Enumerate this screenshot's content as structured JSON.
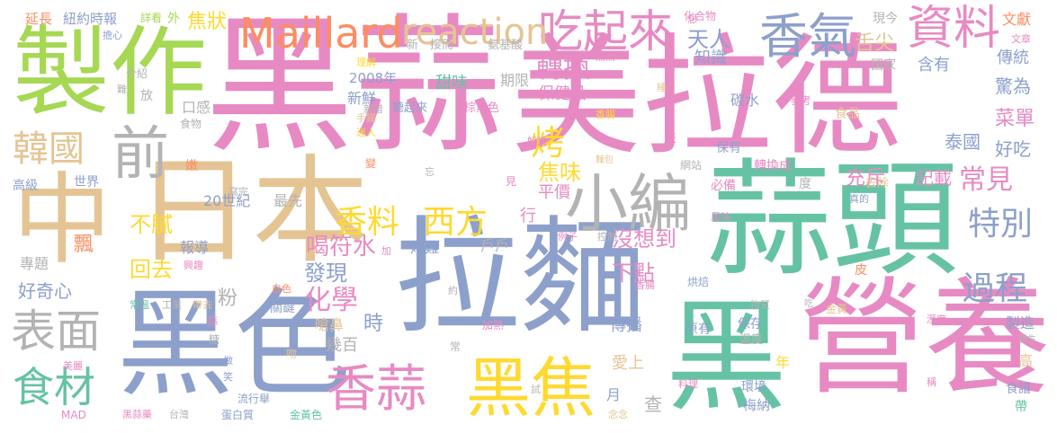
{
  "palette": {
    "green": "#76c17d",
    "mint": "#66c2a5",
    "lime": "#a6d854",
    "yellow": "#ffd92f",
    "tan": "#e5c494",
    "orange": "#fc8d62",
    "blue": "#8da0cb",
    "pink": "#e78ac3",
    "gray": "#b3b3b3"
  },
  "words": [
    {
      "text": "黑蒜",
      "color": "#e78ac3"
    },
    {
      "text": "美拉德",
      "color": "#e78ac3"
    },
    {
      "text": "蒜頭",
      "color": "#66c2a5"
    },
    {
      "text": "拉麵",
      "color": "#8da0cb"
    },
    {
      "text": "營養",
      "color": "#e78ac3"
    },
    {
      "text": "製作",
      "color": "#a6d854"
    },
    {
      "text": "黑色",
      "color": "#8da0cb"
    },
    {
      "text": "日本",
      "color": "#e5c494"
    },
    {
      "text": "黑",
      "color": "#66c2a5"
    },
    {
      "text": "中",
      "color": "#e5c494"
    },
    {
      "text": "小編",
      "color": "#b3b3b3"
    },
    {
      "text": "前",
      "color": "#b3b3b3"
    },
    {
      "text": "黑焦",
      "color": "#ffd92f"
    },
    {
      "text": "香蒜",
      "color": "#e78ac3"
    },
    {
      "text": "香氣",
      "color": "#8da0cb"
    },
    {
      "text": "資料",
      "color": "#e78ac3"
    },
    {
      "text": "吃起來",
      "color": "#e78ac3"
    },
    {
      "text": "Maillard",
      "color": "#fc8d62"
    },
    {
      "text": "reaction",
      "color": "#e5c494"
    },
    {
      "text": "表面",
      "color": "#b3b3b3"
    },
    {
      "text": "食材",
      "color": "#66c2a5"
    },
    {
      "text": "韓國",
      "color": "#e5c494"
    },
    {
      "text": "香料",
      "color": "#ffd92f"
    },
    {
      "text": "西方",
      "color": "#ffd92f"
    },
    {
      "text": "特別",
      "color": "#8da0cb"
    },
    {
      "text": "過程",
      "color": "#8da0cb"
    },
    {
      "text": "烤",
      "color": "#ffd92f"
    },
    {
      "text": "轉換",
      "color": "#e78ac3"
    },
    {
      "text": "化學",
      "color": "#e78ac3"
    },
    {
      "text": "天人",
      "color": "#8da0cb"
    },
    {
      "text": "喝符水",
      "color": "#e78ac3"
    },
    {
      "text": "發現",
      "color": "#8da0cb"
    },
    {
      "text": "常見",
      "color": "#e78ac3"
    },
    {
      "text": "沒想到",
      "color": "#e78ac3"
    },
    {
      "text": "下點",
      "color": "#e78ac3"
    },
    {
      "text": "焦味",
      "color": "#ffd92f"
    },
    {
      "text": "不膩",
      "color": "#ffd92f"
    },
    {
      "text": "回去",
      "color": "#ffd92f"
    },
    {
      "text": "焦狀",
      "color": "#ffd92f"
    },
    {
      "text": "舌尖",
      "color": "#e5c494"
    },
    {
      "text": "充斥",
      "color": "#e78ac3"
    },
    {
      "text": "菜單",
      "color": "#e78ac3"
    },
    {
      "text": "驚為",
      "color": "#8da0cb"
    },
    {
      "text": "好吃",
      "color": "#8da0cb"
    },
    {
      "text": "傳統",
      "color": "#8da0cb"
    },
    {
      "text": "知識",
      "color": "#8da0cb"
    },
    {
      "text": "含有",
      "color": "#8da0cb"
    },
    {
      "text": "泰國",
      "color": "#8da0cb"
    },
    {
      "text": "記載",
      "color": "#e78ac3"
    },
    {
      "text": "保健品",
      "color": "#e78ac3"
    },
    {
      "text": "甜味",
      "color": "#66c2a5"
    },
    {
      "text": "期限",
      "color": "#b3b3b3"
    },
    {
      "text": "新鮮",
      "color": "#8da0cb"
    },
    {
      "text": "2008年",
      "color": "#8da0cb"
    },
    {
      "text": "口感",
      "color": "#b3b3b3"
    },
    {
      "text": "平價",
      "color": "#e78ac3"
    },
    {
      "text": "行",
      "color": "#e78ac3"
    },
    {
      "text": "20世紀",
      "color": "#8da0cb"
    },
    {
      "text": "最先",
      "color": "#b3b3b3"
    },
    {
      "text": "烤雞",
      "color": "#8da0cb"
    },
    {
      "text": "戶戶",
      "color": "#b3b3b3"
    },
    {
      "text": "粉",
      "color": "#b3b3b3"
    },
    {
      "text": "飄",
      "color": "#fc8d62"
    },
    {
      "text": "報導",
      "color": "#8da0cb"
    },
    {
      "text": "好奇心",
      "color": "#8da0cb"
    },
    {
      "text": "專題",
      "color": "#b3b3b3"
    },
    {
      "text": "時",
      "color": "#8da0cb"
    },
    {
      "text": "幾百",
      "color": "#b3b3b3"
    },
    {
      "text": "嗆鼻",
      "color": "#e5c494"
    },
    {
      "text": "傳播",
      "color": "#8da0cb"
    },
    {
      "text": "愛上",
      "color": "#e5c494"
    },
    {
      "text": "查",
      "color": "#b3b3b3"
    },
    {
      "text": "月",
      "color": "#8da0cb"
    },
    {
      "text": "年",
      "color": "#ffd92f"
    },
    {
      "text": "原有",
      "color": "#8da0cb"
    },
    {
      "text": "製造",
      "color": "#8da0cb"
    },
    {
      "text": "高",
      "color": "#e5c494"
    },
    {
      "text": "食譜",
      "color": "#8da0cb"
    },
    {
      "text": "帶",
      "color": "#66c2a5"
    },
    {
      "text": "梅納",
      "color": "#8da0cb"
    },
    {
      "text": "環境",
      "color": "#8da0cb"
    },
    {
      "text": "保存",
      "color": "#8da0cb"
    },
    {
      "text": "溫度",
      "color": "#b3b3b3"
    },
    {
      "text": "轉換成",
      "color": "#e78ac3"
    },
    {
      "text": "必備",
      "color": "#e78ac3"
    },
    {
      "text": "度",
      "color": "#b3b3b3"
    },
    {
      "text": "去除",
      "color": "#e5c494"
    },
    {
      "text": "保有",
      "color": "#8da0cb"
    },
    {
      "text": "網站",
      "color": "#b3b3b3"
    },
    {
      "text": "食品",
      "color": "#e5c494"
    },
    {
      "text": "參考",
      "color": "#e78ac3"
    },
    {
      "text": "碳水",
      "color": "#8da0cb"
    },
    {
      "text": "國家",
      "color": "#b3b3b3"
    },
    {
      "text": "現今",
      "color": "#b3b3b3"
    },
    {
      "text": "文獻",
      "color": "#fc8d62"
    },
    {
      "text": "文章",
      "color": "#e78ac3"
    },
    {
      "text": "化合物",
      "color": "#e78ac3"
    },
    {
      "text": "氨基酸",
      "color": "#b3b3b3"
    },
    {
      "text": "接而",
      "color": "#b3b3b3"
    },
    {
      "text": "新",
      "color": "#b3b3b3"
    },
    {
      "text": "外",
      "color": "#a6d854"
    },
    {
      "text": "詳看",
      "color": "#a6d854"
    },
    {
      "text": "紐約時報",
      "color": "#8da0cb"
    },
    {
      "text": "延長",
      "color": "#fc8d62"
    },
    {
      "text": "擔心",
      "color": "#8da0cb"
    },
    {
      "text": "介紹",
      "color": "#b3b3b3"
    },
    {
      "text": "放",
      "color": "#b3b3b3"
    },
    {
      "text": "難",
      "color": "#b3b3b3"
    },
    {
      "text": "食物",
      "color": "#b3b3b3"
    },
    {
      "text": "高級",
      "color": "#8da0cb"
    },
    {
      "text": "世界",
      "color": "#8da0cb"
    },
    {
      "text": "嫩",
      "color": "#fc8d62"
    },
    {
      "text": "理解",
      "color": "#ffd92f"
    },
    {
      "text": "手鐲",
      "color": "#e5c494"
    },
    {
      "text": "迷人",
      "color": "#ffd92f"
    },
    {
      "text": "新增",
      "color": "#b3b3b3"
    },
    {
      "text": "聽起來",
      "color": "#8da0cb"
    },
    {
      "text": "棕黑色",
      "color": "#e78ac3"
    },
    {
      "text": "解說",
      "color": "#e78ac3"
    },
    {
      "text": "香腸",
      "color": "#ffd92f"
    },
    {
      "text": "麵包",
      "color": "#e5c494"
    },
    {
      "text": "焦黑",
      "color": "#e78ac3"
    },
    {
      "text": "睡",
      "color": "#e5c494"
    },
    {
      "text": "想",
      "color": "#e78ac3"
    },
    {
      "text": "變",
      "color": "#fc8d62"
    },
    {
      "text": "忘",
      "color": "#b3b3b3"
    },
    {
      "text": "寫完",
      "color": "#b3b3b3"
    },
    {
      "text": "見",
      "color": "#e78ac3"
    },
    {
      "text": "天",
      "color": "#e78ac3"
    },
    {
      "text": "真的",
      "color": "#8da0cb"
    },
    {
      "text": "風味",
      "color": "#e78ac3"
    },
    {
      "text": "例子",
      "color": "#e78ac3"
    },
    {
      "text": "控制",
      "color": "#b3b3b3"
    },
    {
      "text": "加",
      "color": "#e78ac3"
    },
    {
      "text": "興趣",
      "color": "#e78ac3"
    },
    {
      "text": "皮",
      "color": "#fc8d62"
    },
    {
      "text": "烘焙",
      "color": "#8da0cb"
    },
    {
      "text": "香腸",
      "color": "#e78ac3"
    },
    {
      "text": "白色",
      "color": "#fc8d62"
    },
    {
      "text": "約",
      "color": "#b3b3b3"
    },
    {
      "text": "物質",
      "color": "#b3b3b3"
    },
    {
      "text": "吃",
      "color": "#b3b3b3"
    },
    {
      "text": "金黃",
      "color": "#e5c494"
    },
    {
      "text": "溼度",
      "color": "#e78ac3"
    },
    {
      "text": "發生",
      "color": "#b3b3b3"
    },
    {
      "text": "常溫",
      "color": "#66c2a5"
    },
    {
      "text": "工業",
      "color": "#b3b3b3"
    },
    {
      "text": "帶去",
      "color": "#e5c494"
    },
    {
      "text": "關鍵",
      "color": "#8da0cb"
    },
    {
      "text": "加熱",
      "color": "#e78ac3"
    },
    {
      "text": "蒜",
      "color": "#e78ac3"
    },
    {
      "text": "糖",
      "color": "#b3b3b3"
    },
    {
      "text": "吻",
      "color": "#e5c494"
    },
    {
      "text": "做",
      "color": "#8da0cb"
    },
    {
      "text": "常",
      "color": "#b3b3b3"
    },
    {
      "text": "美麗",
      "color": "#e78ac3"
    },
    {
      "text": "笑",
      "color": "#8da0cb"
    },
    {
      "text": "流行舉",
      "color": "#8da0cb"
    },
    {
      "text": "試",
      "color": "#b3b3b3"
    },
    {
      "text": "念念",
      "color": "#e5c494"
    },
    {
      "text": "料理",
      "color": "#e78ac3"
    },
    {
      "text": "稱",
      "color": "#e78ac3"
    },
    {
      "text": "MAD",
      "color": "#e78ac3"
    },
    {
      "text": "黑蒜藥",
      "color": "#e78ac3"
    },
    {
      "text": "台灣",
      "color": "#b3b3b3"
    },
    {
      "text": "蛋白質",
      "color": "#8da0cb"
    },
    {
      "text": "金黃色",
      "color": "#66c2a5"
    }
  ]
}
